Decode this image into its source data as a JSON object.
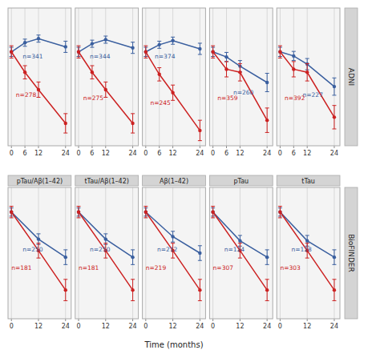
{
  "chart_data": {
    "type": "line",
    "x_label": "Time (months)",
    "grid": true,
    "tick_labels": "x",
    "rows": [
      {
        "label": "ADNI",
        "x": [
          0,
          6,
          12,
          24
        ],
        "xlim": [
          -1.5,
          26.5
        ],
        "xticks": [
          0,
          6,
          12,
          24
        ],
        "ylim": [
          18.0,
          31.5
        ],
        "panels": [
          {
            "series": [
              {
                "color": "#3a5f9f",
                "values": [
                  27.2,
                  28.1,
                  28.5,
                  27.7
                ],
                "errors": [
                  0.45,
                  0.35,
                  0.35,
                  0.55
                ],
                "n_label": "n=341",
                "n_x": 5,
                "n_y": 27.0
              },
              {
                "color": "#cc2222",
                "values": [
                  27.2,
                  25.2,
                  23.5,
                  20.2
                ],
                "errors": [
                  0.6,
                  0.65,
                  0.75,
                  0.95
                ],
                "n_label": "n=278",
                "n_x": 2,
                "n_y": 22.8
              }
            ]
          },
          {
            "series": [
              {
                "color": "#3a5f9f",
                "values": [
                  27.2,
                  28.0,
                  28.4,
                  27.6
                ],
                "errors": [
                  0.45,
                  0.35,
                  0.35,
                  0.55
                ],
                "n_label": "n=344",
                "n_x": 5,
                "n_y": 27.0
              },
              {
                "color": "#cc2222",
                "values": [
                  27.2,
                  25.2,
                  23.5,
                  20.2
                ],
                "errors": [
                  0.6,
                  0.65,
                  0.75,
                  0.95
                ],
                "n_label": "n=275",
                "n_x": 2,
                "n_y": 22.5
              }
            ]
          },
          {
            "series": [
              {
                "color": "#3a5f9f",
                "values": [
                  27.2,
                  27.9,
                  28.3,
                  27.5
                ],
                "errors": [
                  0.45,
                  0.35,
                  0.35,
                  0.55
                ],
                "n_label": "n=374",
                "n_x": 4,
                "n_y": 27.0
              },
              {
                "color": "#cc2222",
                "values": [
                  27.2,
                  25.0,
                  23.2,
                  19.5
                ],
                "errors": [
                  0.6,
                  0.65,
                  0.75,
                  1.0
                ],
                "n_label": "n=245",
                "n_x": 2,
                "n_y": 22.0
              }
            ]
          },
          {
            "series": [
              {
                "color": "#3a5f9f",
                "values": [
                  27.2,
                  26.7,
                  25.8,
                  24.2
                ],
                "errors": [
                  0.45,
                  0.45,
                  0.55,
                  0.9
                ],
                "n_label": "n=260",
                "n_x": 9,
                "n_y": 23.5
              },
              {
                "color": "#cc2222",
                "values": [
                  27.2,
                  25.5,
                  25.2,
                  20.5
                ],
                "errors": [
                  0.6,
                  0.75,
                  0.85,
                  1.2
                ],
                "n_label": "n=359",
                "n_x": 2,
                "n_y": 22.5
              }
            ]
          },
          {
            "series": [
              {
                "color": "#3a5f9f",
                "values": [
                  27.2,
                  26.8,
                  26.0,
                  23.8
                ],
                "errors": [
                  0.45,
                  0.45,
                  0.55,
                  0.85
                ],
                "n_label": "n=227",
                "n_x": 10,
                "n_y": 23.2
              },
              {
                "color": "#cc2222",
                "values": [
                  27.2,
                  25.5,
                  25.2,
                  20.8
                ],
                "errors": [
                  0.6,
                  0.75,
                  0.85,
                  1.15
                ],
                "n_label": "n=392",
                "n_x": 2,
                "n_y": 22.5
              }
            ]
          }
        ]
      },
      {
        "label": "BioFINDER",
        "x": [
          0,
          12,
          24
        ],
        "xlim": [
          -1.5,
          26.5
        ],
        "xticks": [
          0,
          12,
          24
        ],
        "ylim": [
          14.5,
          30.5
        ],
        "panels": [
          {
            "title": "pTau/Aβ(1–42)",
            "series": [
              {
                "color": "#3a5f9f",
                "values": [
                  27.5,
                  24.2,
                  22.0
                ],
                "errors": [
                  0.5,
                  0.65,
                  0.9
                ],
                "n_label": "n=250",
                "n_x": 5,
                "n_y": 23.2
              },
              {
                "color": "#cc2222",
                "values": [
                  27.5,
                  22.8,
                  18.0
                ],
                "errors": [
                  0.7,
                  0.9,
                  1.3
                ],
                "n_label": "n=181",
                "n_x": 0,
                "n_y": 20.5
              }
            ]
          },
          {
            "title": "tTau/Aβ(1–42)",
            "series": [
              {
                "color": "#3a5f9f",
                "values": [
                  27.5,
                  24.2,
                  22.0
                ],
                "errors": [
                  0.5,
                  0.65,
                  0.9
                ],
                "n_label": "n=250",
                "n_x": 5,
                "n_y": 23.2
              },
              {
                "color": "#cc2222",
                "values": [
                  27.5,
                  22.8,
                  18.0
                ],
                "errors": [
                  0.7,
                  0.9,
                  1.3
                ],
                "n_label": "n=181",
                "n_x": 0,
                "n_y": 20.5
              }
            ]
          },
          {
            "title": "Aβ(1–42)",
            "series": [
              {
                "color": "#3a5f9f",
                "values": [
                  27.5,
                  24.5,
                  22.5
                ],
                "errors": [
                  0.5,
                  0.65,
                  0.9
                ],
                "n_label": "n=212",
                "n_x": 5,
                "n_y": 23.2
              },
              {
                "color": "#cc2222",
                "values": [
                  27.5,
                  22.8,
                  18.0
                ],
                "errors": [
                  0.7,
                  0.9,
                  1.3
                ],
                "n_label": "n=219",
                "n_x": 0,
                "n_y": 20.5
              }
            ]
          },
          {
            "title": "pTau",
            "series": [
              {
                "color": "#3a5f9f",
                "values": [
                  27.5,
                  24.0,
                  22.0
                ],
                "errors": [
                  0.5,
                  0.65,
                  0.9
                ],
                "n_label": "n=124",
                "n_x": 5,
                "n_y": 23.2
              },
              {
                "color": "#cc2222",
                "values": [
                  27.5,
                  22.8,
                  18.0
                ],
                "errors": [
                  0.7,
                  0.9,
                  1.3
                ],
                "n_label": "n=307",
                "n_x": 0,
                "n_y": 20.5
              }
            ]
          },
          {
            "title": "tTau",
            "series": [
              {
                "color": "#3a5f9f",
                "values": [
                  27.5,
                  24.0,
                  22.0
                ],
                "errors": [
                  0.5,
                  0.65,
                  0.9
                ],
                "n_label": "n=128",
                "n_x": 5,
                "n_y": 23.2
              },
              {
                "color": "#cc2222",
                "values": [
                  27.5,
                  22.8,
                  18.0
                ],
                "errors": [
                  0.7,
                  0.9,
                  1.3
                ],
                "n_label": "n=303",
                "n_x": 0,
                "n_y": 20.5
              }
            ]
          }
        ]
      }
    ]
  }
}
